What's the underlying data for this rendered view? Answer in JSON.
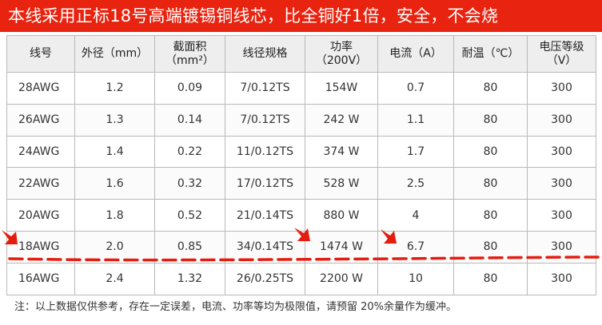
{
  "banner": {
    "title": "本线采用正标18号高端镀锡铜线芯，比全铜好1倍，安全，不会烧"
  },
  "table": {
    "headers": [
      {
        "line1": "线号",
        "line2": ""
      },
      {
        "line1": "外径（mm）",
        "line2": ""
      },
      {
        "line1": "截面积",
        "line2": "（mm²）"
      },
      {
        "line1": "线径规格",
        "line2": ""
      },
      {
        "line1": "功率",
        "line2": "（200V）"
      },
      {
        "line1": "电流（A）",
        "line2": ""
      },
      {
        "line1": "耐温（℃）",
        "line2": ""
      },
      {
        "line1": "电压等级",
        "line2": "（V）"
      }
    ],
    "rows": [
      [
        "28AWG",
        "1.2",
        "0.09",
        "7/0.12TS",
        "154W",
        "0.7",
        "80",
        "300"
      ],
      [
        "26AWG",
        "1.3",
        "0.14",
        "7/0.12TS",
        "242 W",
        "1.1",
        "80",
        "300"
      ],
      [
        "24AWG",
        "1.4",
        "0.22",
        "11/0.12TS",
        "374 W",
        "1.7",
        "80",
        "300"
      ],
      [
        "22AWG",
        "1.6",
        "0.32",
        "17/0.12TS",
        "528 W",
        "2.5",
        "80",
        "300"
      ],
      [
        "20AWG",
        "1.8",
        "0.52",
        "21/0.14TS",
        "880 W",
        "4",
        "80",
        "300"
      ],
      [
        "18AWG",
        "2.0",
        "0.85",
        "34/0.14TS",
        "1474 W",
        "6.7",
        "80",
        "300"
      ],
      [
        "16AWG",
        "2.4",
        "1.32",
        "26/0.25TS",
        "2200 W",
        "10",
        "80",
        "300"
      ]
    ],
    "highlighted_row": "18AWG"
  },
  "footnote": "注：以上数据仅供参考，存在一定误差，电流、功率等均为极限值，请预留 20%余量作为缓冲。",
  "colors": {
    "banner_bg": "#e8230f",
    "annotation": "#e31e10",
    "grid": "#b9b9b9"
  }
}
